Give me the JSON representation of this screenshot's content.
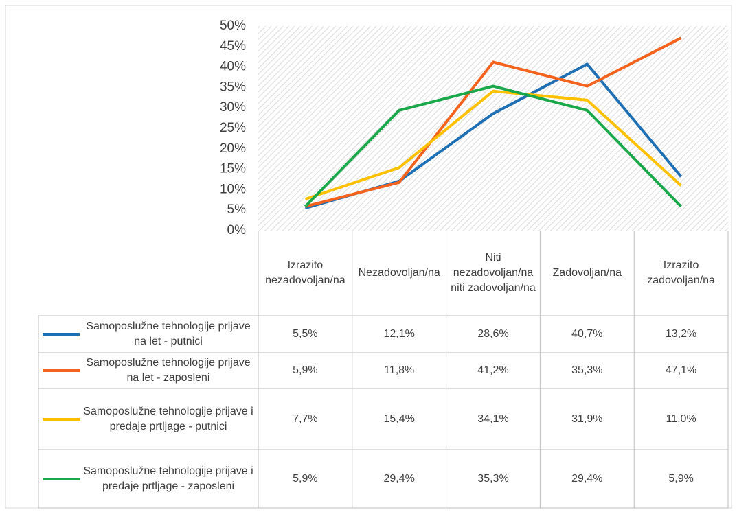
{
  "chart_data": {
    "type": "line",
    "categories": [
      "Izrazito nezadovoljan/na",
      "Nezadovoljan/na",
      "Niti nezadovoljan/na niti zadovoljan/na",
      "Zadovoljan/na",
      "Izrazito zadovoljan/na"
    ],
    "series": [
      {
        "name": "Samoposlužne tehnologije prijave na let - putnici",
        "color": "#1f6fb5",
        "values": [
          5.5,
          12.1,
          28.6,
          40.7,
          13.2
        ],
        "value_labels": [
          "5,5%",
          "12,1%",
          "28,6%",
          "40,7%",
          "13,2%"
        ]
      },
      {
        "name": "Samoposlužne tehnologije prijave na let - zaposleni",
        "color": "#f4631e",
        "values": [
          5.9,
          11.8,
          41.2,
          35.3,
          47.1
        ],
        "value_labels": [
          "5,9%",
          "11,8%",
          "41,2%",
          "35,3%",
          "47,1%"
        ]
      },
      {
        "name": "Samoposlužne tehnologije prijave i predaje prtljage - putnici",
        "color": "#ffc000",
        "values": [
          7.7,
          15.4,
          34.1,
          31.9,
          11.0
        ],
        "value_labels": [
          "7,7%",
          "15,4%",
          "34,1%",
          "31,9%",
          "11,0%"
        ]
      },
      {
        "name": "Samoposlužne tehnologije prijave i predaje prtljage - zaposleni",
        "color": "#1aa84a",
        "values": [
          5.9,
          29.4,
          35.3,
          29.4,
          5.9
        ],
        "value_labels": [
          "5,9%",
          "29,4%",
          "35,3%",
          "29,4%",
          "5,9%"
        ]
      }
    ],
    "ylim": [
      0,
      50
    ],
    "yticks": [
      {
        "value": 0,
        "label": "0%"
      },
      {
        "value": 5,
        "label": "5%"
      },
      {
        "value": 10,
        "label": "10%"
      },
      {
        "value": 15,
        "label": "15%"
      },
      {
        "value": 20,
        "label": "20%"
      },
      {
        "value": 25,
        "label": "25%"
      },
      {
        "value": 30,
        "label": "30%"
      },
      {
        "value": 35,
        "label": "35%"
      },
      {
        "value": 40,
        "label": "40%"
      },
      {
        "value": 45,
        "label": "45%"
      },
      {
        "value": 50,
        "label": "50%"
      }
    ],
    "grid": false
  }
}
